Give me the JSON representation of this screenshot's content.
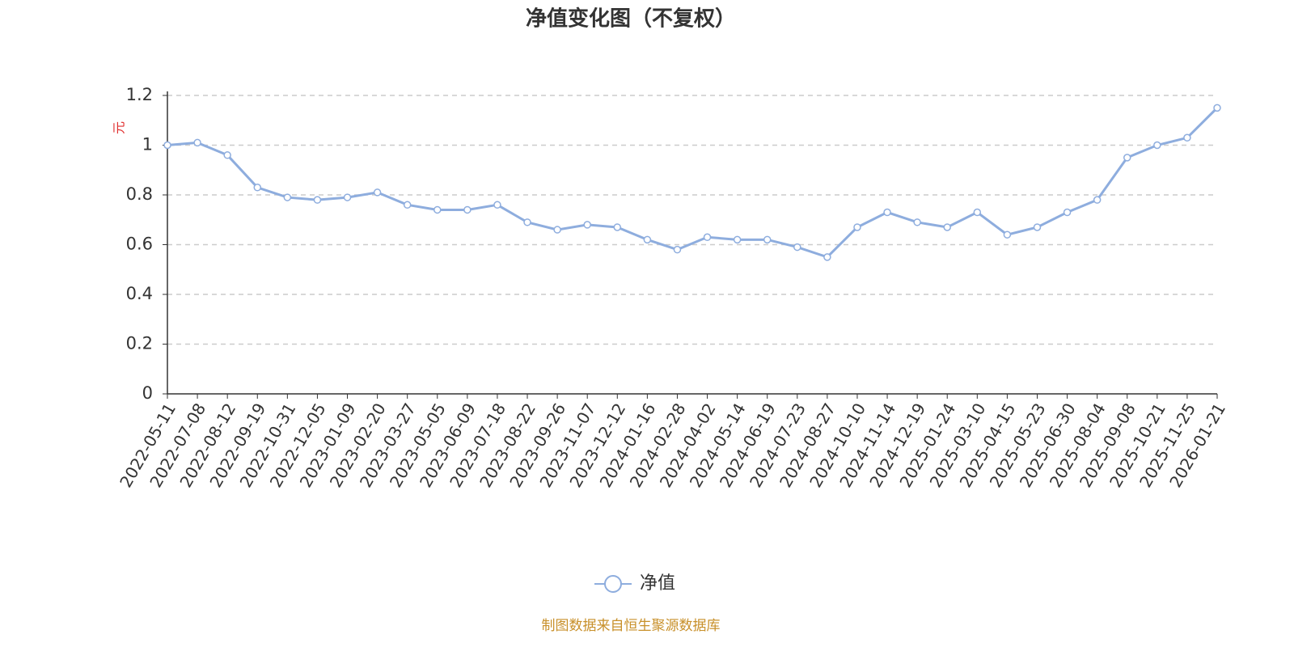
{
  "chart_data": {
    "type": "line",
    "title": "净值变化图（不复权）",
    "y_label": "元",
    "categories": [
      "2022-05-11",
      "2022-07-08",
      "2022-08-12",
      "2022-09-19",
      "2022-10-31",
      "2022-12-05",
      "2023-01-09",
      "2023-02-20",
      "2023-03-27",
      "2023-05-05",
      "2023-06-09",
      "2023-07-18",
      "2023-08-22",
      "2023-09-26",
      "2023-11-07",
      "2023-12-12",
      "2024-01-16",
      "2024-02-28",
      "2024-04-02",
      "2024-05-14",
      "2024-06-19",
      "2024-07-23",
      "2024-08-27",
      "2024-10-10",
      "2024-11-14",
      "2024-12-19",
      "2025-01-24",
      "2025-03-10",
      "2025-04-15",
      "2025-05-23",
      "2025-06-30",
      "2025-08-04",
      "2025-09-08",
      "2025-10-21",
      "2025-11-25",
      "2026-01-21"
    ],
    "series": [
      {
        "name": "净值",
        "color": "#8eadde",
        "values": [
          1.0,
          1.01,
          0.96,
          0.83,
          0.79,
          0.78,
          0.79,
          0.81,
          0.76,
          0.74,
          0.74,
          0.76,
          0.69,
          0.66,
          0.68,
          0.67,
          0.62,
          0.58,
          0.63,
          0.62,
          0.62,
          0.59,
          0.55,
          0.67,
          0.73,
          0.69,
          0.67,
          0.73,
          0.64,
          0.67,
          0.73,
          0.78,
          0.95,
          1.0,
          1.03,
          1.15
        ]
      }
    ],
    "ylim": [
      0,
      1.2
    ],
    "yticks": [
      0,
      0.2,
      0.4,
      0.6,
      0.8,
      1,
      1.2
    ],
    "grid": true,
    "legend": "bottom",
    "source": "制图数据来自恒生聚源数据库"
  }
}
